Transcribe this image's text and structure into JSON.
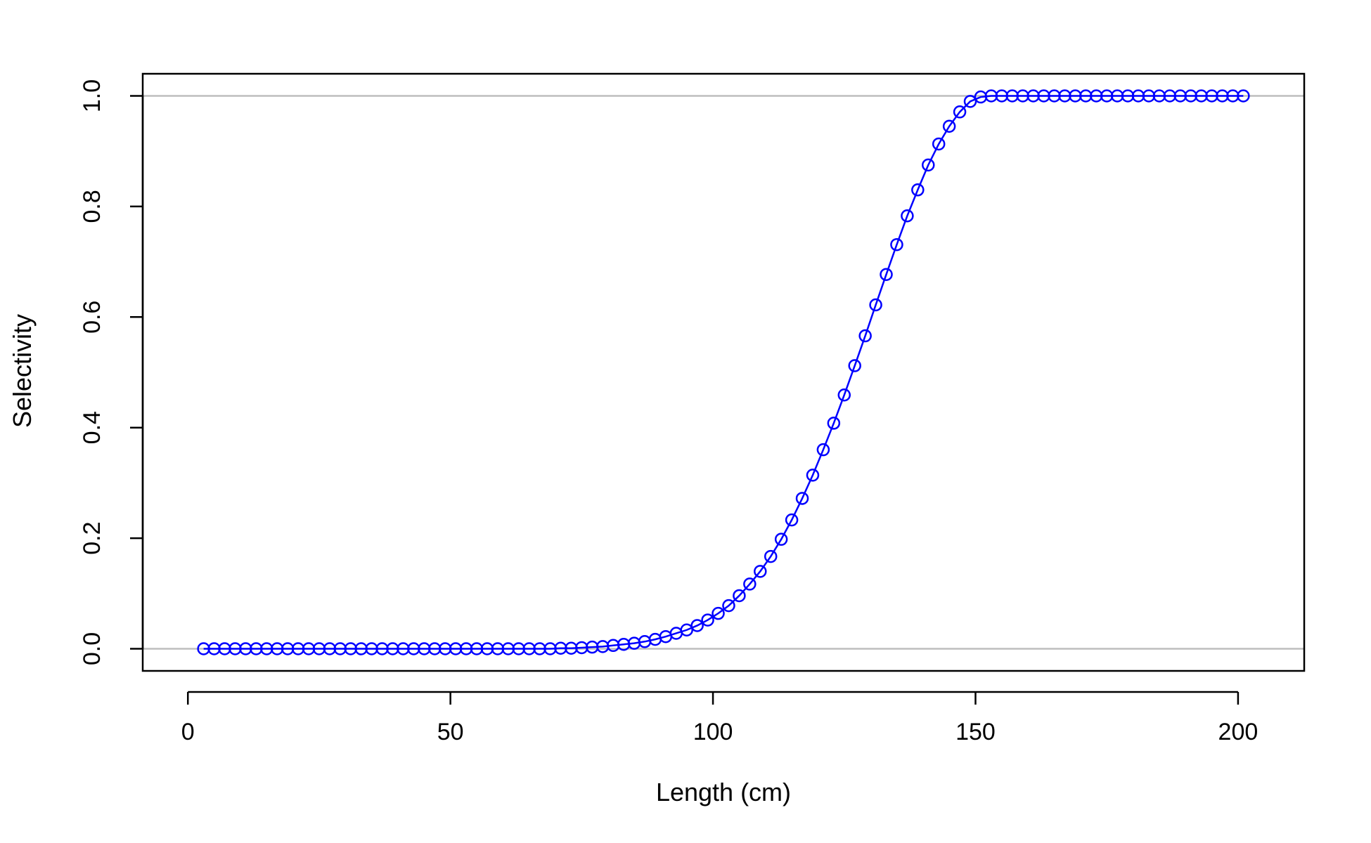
{
  "chart_data": {
    "type": "line",
    "title": "",
    "xlabel": "Length (cm)",
    "ylabel": "Selectivity",
    "xlim": [
      -8.6,
      212.6
    ],
    "ylim": [
      -0.04,
      1.04
    ],
    "xticks": [
      0,
      50,
      100,
      150,
      200
    ],
    "xtick_labels": [
      "0",
      "50",
      "100",
      "150",
      "200"
    ],
    "yticks": [
      0,
      0.2,
      0.4,
      0.6,
      0.8,
      1.0
    ],
    "ytick_labels": [
      "0.0",
      "0.2",
      "0.4",
      "0.6",
      "0.8",
      "1.0"
    ],
    "reference_lines_y": [
      0,
      1
    ],
    "grid": false,
    "series": [
      {
        "color": "#0000ff",
        "marker": "open-circle",
        "x": [
          3,
          5,
          7,
          9,
          11,
          13,
          15,
          17,
          19,
          21,
          23,
          25,
          27,
          29,
          31,
          33,
          35,
          37,
          39,
          41,
          43,
          45,
          47,
          49,
          51,
          53,
          55,
          57,
          59,
          61,
          63,
          65,
          67,
          69,
          71,
          73,
          75,
          77,
          79,
          81,
          83,
          85,
          87,
          89,
          91,
          93,
          95,
          97,
          99,
          101,
          103,
          105,
          107,
          109,
          111,
          113,
          115,
          117,
          119,
          121,
          123,
          125,
          127,
          129,
          131,
          133,
          135,
          137,
          139,
          141,
          143,
          145,
          147,
          149,
          151,
          153,
          155,
          157,
          159,
          161,
          163,
          165,
          167,
          169,
          171,
          173,
          175,
          177,
          179,
          181,
          183,
          185,
          187,
          189,
          191,
          193,
          195,
          197,
          199,
          201
        ],
        "y": [
          0,
          0,
          0,
          0,
          0,
          0,
          0,
          0,
          0,
          0,
          0,
          0,
          0,
          0,
          0,
          0,
          0,
          0,
          0,
          0,
          0,
          0,
          0,
          0,
          0,
          0,
          0,
          0,
          0,
          0,
          0,
          0,
          0,
          0,
          0.001,
          0.001,
          0.002,
          0.003,
          0.004,
          0.006,
          0.008,
          0.01,
          0.013,
          0.017,
          0.022,
          0.028,
          0.034,
          0.042,
          0.052,
          0.064,
          0.078,
          0.096,
          0.117,
          0.14,
          0.167,
          0.198,
          0.233,
          0.272,
          0.314,
          0.36,
          0.408,
          0.459,
          0.512,
          0.566,
          0.622,
          0.677,
          0.731,
          0.783,
          0.83,
          0.875,
          0.913,
          0.945,
          0.971,
          0.99,
          0.998,
          1,
          1,
          1,
          1,
          1,
          1,
          1,
          1,
          1,
          1,
          1,
          1,
          1,
          1,
          1,
          1,
          1,
          1,
          1,
          1,
          1,
          1,
          1,
          1,
          1
        ]
      }
    ]
  },
  "colors": {
    "series": "#0000ff",
    "reference_line": "#bebebe",
    "axis": "#000000"
  }
}
